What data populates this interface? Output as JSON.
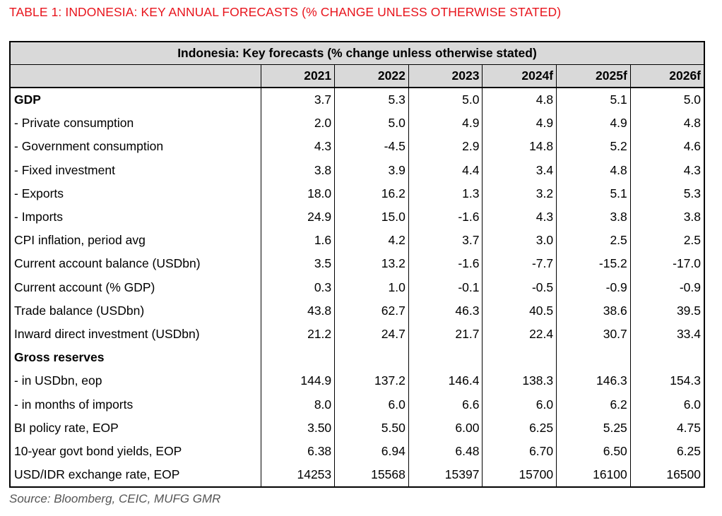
{
  "caption": "TABLE 1: INDONESIA: KEY ANNUAL FORECASTS (% CHANGE UNLESS OTHERWISE STATED)",
  "table": {
    "title": "Indonesia: Key forecasts (% change unless otherwise stated)",
    "columns": [
      "2021",
      "2022",
      "2023",
      "2024f",
      "2025f",
      "2026f"
    ],
    "rows": [
      {
        "label": "GDP",
        "bold": true,
        "values": [
          "3.7",
          "5.3",
          "5.0",
          "4.8",
          "5.1",
          "5.0"
        ]
      },
      {
        "label": " - Private consumption",
        "bold": false,
        "values": [
          "2.0",
          "5.0",
          "4.9",
          "4.9",
          "4.9",
          "4.8"
        ]
      },
      {
        "label": " - Government consumption",
        "bold": false,
        "values": [
          "4.3",
          "-4.5",
          "2.9",
          "14.8",
          "5.2",
          "4.6"
        ]
      },
      {
        "label": " - Fixed investment",
        "bold": false,
        "values": [
          "3.8",
          "3.9",
          "4.4",
          "3.4",
          "4.8",
          "4.3"
        ]
      },
      {
        "label": " - Exports",
        "bold": false,
        "values": [
          "18.0",
          "16.2",
          "1.3",
          "3.2",
          "5.1",
          "5.3"
        ]
      },
      {
        "label": " - Imports",
        "bold": false,
        "values": [
          "24.9",
          "15.0",
          "-1.6",
          "4.3",
          "3.8",
          "3.8"
        ]
      },
      {
        "label": "CPI inflation, period avg",
        "bold": false,
        "values": [
          "1.6",
          "4.2",
          "3.7",
          "3.0",
          "2.5",
          "2.5"
        ]
      },
      {
        "label": "Current account balance (USDbn)",
        "bold": false,
        "values": [
          "3.5",
          "13.2",
          "-1.6",
          "-7.7",
          "-15.2",
          "-17.0"
        ]
      },
      {
        "label": "Current account (% GDP)",
        "bold": false,
        "values": [
          "0.3",
          "1.0",
          "-0.1",
          "-0.5",
          "-0.9",
          "-0.9"
        ]
      },
      {
        "label": "Trade balance (USDbn)",
        "bold": false,
        "values": [
          "43.8",
          "62.7",
          "46.3",
          "40.5",
          "38.6",
          "39.5"
        ]
      },
      {
        "label": "Inward direct investment (USDbn)",
        "bold": false,
        "values": [
          "21.2",
          "24.7",
          "21.7",
          "22.4",
          "30.7",
          "33.4"
        ]
      },
      {
        "label": "Gross reserves",
        "bold": true,
        "values": [
          "",
          "",
          "",
          "",
          "",
          ""
        ]
      },
      {
        "label": " - in USDbn, eop",
        "bold": false,
        "values": [
          "144.9",
          "137.2",
          "146.4",
          "138.3",
          "146.3",
          "154.3"
        ]
      },
      {
        "label": " - in months of imports",
        "bold": false,
        "values": [
          "8.0",
          "6.0",
          "6.6",
          "6.0",
          "6.2",
          "6.0"
        ]
      },
      {
        "label": "BI policy rate, EOP",
        "bold": false,
        "values": [
          "3.50",
          "5.50",
          "6.00",
          "6.25",
          "5.25",
          "4.75"
        ]
      },
      {
        "label": "10-year govt bond yields, EOP",
        "bold": false,
        "values": [
          "6.38",
          "6.94",
          "6.48",
          "6.70",
          "6.50",
          "6.25"
        ]
      },
      {
        "label": "USD/IDR exchange rate, EOP",
        "bold": false,
        "values": [
          "14253",
          "15568",
          "15397",
          "15700",
          "16100",
          "16500"
        ]
      }
    ]
  },
  "source": "Source: Bloomberg, CEIC, MUFG GMR",
  "colors": {
    "caption": "#e8141c",
    "header_bg": "#d9d9d9",
    "source": "#555555"
  }
}
